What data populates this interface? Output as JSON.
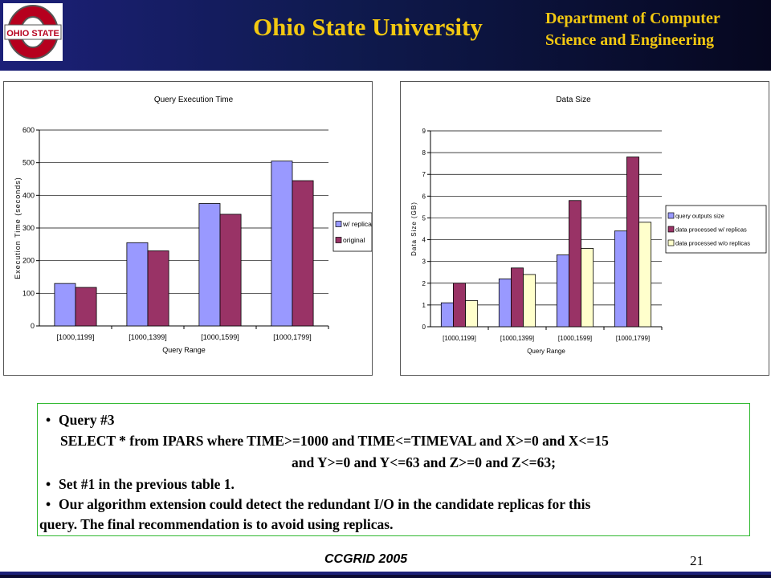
{
  "header": {
    "university": "Ohio State University",
    "department_line1": "Department of Computer",
    "department_line2": "Science and Engineering",
    "logo_text": "OHIO STATE",
    "colors": {
      "band_left": "#1c2078",
      "band_right": "#06071f",
      "title": "#f2c811",
      "logo_red": "#b6001e"
    }
  },
  "chart_data": [
    {
      "type": "bar",
      "title": "Query Execution Time",
      "xlabel": "Query Range",
      "ylabel": "Execution Time (seconds)",
      "ylim": [
        0,
        600
      ],
      "yticks": [
        0,
        100,
        200,
        300,
        400,
        500,
        600
      ],
      "categories": [
        "[1000,1199]",
        "[1000,1399]",
        "[1000,1599]",
        "[1000,1799]"
      ],
      "series": [
        {
          "name": "w/ replicas",
          "color": "#9999ff",
          "values": [
            130,
            255,
            375,
            505
          ]
        },
        {
          "name": "original",
          "color": "#993366",
          "values": [
            118,
            230,
            342,
            445
          ]
        }
      ],
      "legend": "right",
      "grid": true
    },
    {
      "type": "bar",
      "title": "Data Size",
      "xlabel": "Query Range",
      "ylabel": "Data Size (GB)",
      "ylim": [
        0,
        9
      ],
      "yticks": [
        0,
        1,
        2,
        3,
        4,
        5,
        6,
        7,
        8,
        9
      ],
      "categories": [
        "[1000,1199]",
        "[1000,1399]",
        "[1000,1599]",
        "[1000,1799]"
      ],
      "series": [
        {
          "name": "query outputs size",
          "color": "#9999ff",
          "values": [
            1.1,
            2.2,
            3.3,
            4.4
          ]
        },
        {
          "name": "data processed w/ replicas",
          "color": "#993366",
          "values": [
            2.0,
            2.7,
            5.8,
            7.8
          ]
        },
        {
          "name": "data processed w/o replicas",
          "color": "#ffffcc",
          "values": [
            1.2,
            2.4,
            3.6,
            4.8
          ]
        }
      ],
      "legend": "right",
      "grid": true
    }
  ],
  "body": {
    "query_title": "Query #3",
    "query_sql_1": "SELECT * from IPARS where TIME>=1000 and TIME<=TIMEVAL and X>=0 and X<=15",
    "query_sql_2": "and Y>=0 and Y<=63 and Z>=0 and Z<=63;",
    "set_line": "Set #1 in the previous table 1.",
    "conclusion_1": "Our algorithm extension could detect the redundant I/O in the candidate replicas for this",
    "conclusion_2": "query. The final recommendation is to avoid using replicas.",
    "bullet": "•"
  },
  "footer": {
    "conference": "CCGRID 2005",
    "page_number": "21"
  }
}
